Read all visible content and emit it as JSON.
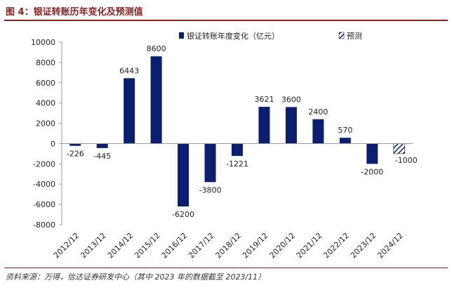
{
  "figure": {
    "title": "图 4：银证转账历年变化及预测值",
    "source": "资料来源：万得，信达证券研发中心（其中 2023 年的数据截至 2023/11）"
  },
  "colors": {
    "bar": "#0c1e6e",
    "title": "#8b2020",
    "axis": "#999999"
  },
  "chart_data": {
    "type": "bar",
    "categories": [
      "2012/12",
      "2013/12",
      "2014/12",
      "2015/12",
      "2016/12",
      "2017/12",
      "2018/12",
      "2019/12",
      "2020/12",
      "2021/12",
      "2022/12",
      "2023/12",
      "2024/12"
    ],
    "series": [
      {
        "name": "银证转账年度变化（亿元）",
        "values": [
          -226,
          -445,
          6443,
          8600,
          -6200,
          -3800,
          -1221,
          3621,
          3600,
          2400,
          570,
          -2000,
          null
        ],
        "labels": [
          "-226",
          "-445",
          "6443",
          "8600",
          "-6200",
          "-3800",
          "-1221",
          "3621",
          "3600",
          "2400",
          "570",
          "-2000",
          ""
        ],
        "style": "solid"
      },
      {
        "name": "预测",
        "values": [
          null,
          null,
          null,
          null,
          null,
          null,
          null,
          null,
          null,
          null,
          null,
          null,
          -1000
        ],
        "labels": [
          "",
          "",
          "",
          "",
          "",
          "",
          "",
          "",
          "",
          "",
          "",
          "",
          "-1000"
        ],
        "style": "hatched"
      }
    ],
    "ylim": [
      -8000,
      10000
    ],
    "yticks": [
      10000,
      8000,
      6000,
      4000,
      2000,
      0,
      -2000,
      -4000,
      -6000,
      -8000
    ],
    "ytick_labels": [
      "10000",
      "8000",
      "6000",
      "4000",
      "2000",
      "0",
      "-2000",
      "-4000",
      "-6000",
      "-8000"
    ],
    "legend_position": "top-right",
    "grid": false
  }
}
